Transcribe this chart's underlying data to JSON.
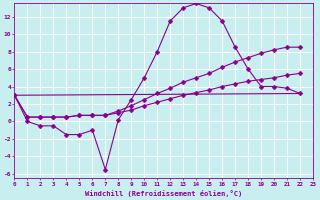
{
  "xlabel": "Windchill (Refroidissement éolien,°C)",
  "background_color": "#c8eef0",
  "grid_color": "#ffffff",
  "line_color": "#8b008b",
  "xlim": [
    0,
    23
  ],
  "ylim": [
    -6.5,
    13.5
  ],
  "yticks": [
    -6,
    -4,
    -2,
    0,
    2,
    4,
    6,
    8,
    10,
    12
  ],
  "xticks": [
    0,
    1,
    2,
    3,
    4,
    5,
    6,
    7,
    8,
    9,
    10,
    11,
    12,
    13,
    14,
    15,
    16,
    17,
    18,
    19,
    20,
    21,
    22,
    23
  ],
  "series": [
    {
      "x": [
        0,
        1,
        2,
        3,
        4,
        5,
        6,
        7,
        8,
        9,
        10,
        11,
        12,
        13,
        14,
        15,
        16,
        17,
        18,
        19,
        20,
        21,
        22
      ],
      "y": [
        3,
        0,
        -0.5,
        -0.5,
        -1.5,
        -1.5,
        -1.0,
        -5.5,
        0.2,
        2.5,
        5.0,
        8.0,
        11.5,
        13.0,
        13.5,
        13.0,
        11.5,
        8.5,
        6.0,
        4.0,
        4.0,
        3.8,
        3.2
      ]
    },
    {
      "x": [
        0,
        22
      ],
      "y": [
        3,
        3.2
      ]
    },
    {
      "x": [
        0,
        1,
        2,
        3,
        4,
        5,
        6,
        7,
        8,
        9,
        10,
        11,
        12,
        13,
        14,
        15,
        16,
        17,
        18,
        19,
        20,
        21,
        22
      ],
      "y": [
        3,
        0.5,
        0.5,
        0.5,
        0.5,
        0.7,
        0.7,
        0.7,
        1.0,
        1.3,
        1.8,
        2.2,
        2.6,
        3.0,
        3.3,
        3.6,
        4.0,
        4.3,
        4.6,
        4.8,
        5.0,
        5.3,
        5.5
      ]
    },
    {
      "x": [
        0,
        1,
        2,
        3,
        4,
        5,
        6,
        7,
        8,
        9,
        10,
        11,
        12,
        13,
        14,
        15,
        16,
        17,
        18,
        19,
        20,
        21,
        22
      ],
      "y": [
        3,
        0.5,
        0.5,
        0.5,
        0.5,
        0.7,
        0.7,
        0.7,
        1.2,
        1.8,
        2.5,
        3.2,
        3.8,
        4.5,
        5.0,
        5.5,
        6.2,
        6.8,
        7.3,
        7.8,
        8.2,
        8.5,
        8.5
      ]
    }
  ],
  "marker": "D",
  "markersize": 2.5,
  "linewidth": 0.8
}
